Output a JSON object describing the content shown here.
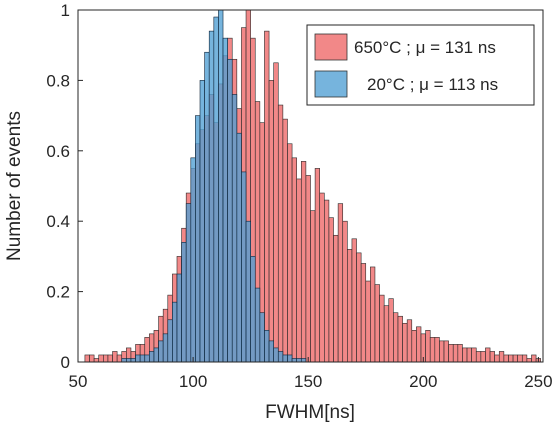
{
  "chart_data": {
    "type": "bar",
    "xlabel": "FWHM[ns]",
    "ylabel": "Number of events",
    "xlim": [
      50,
      252
    ],
    "ylim": [
      0,
      1
    ],
    "xticks": [
      "50",
      "100",
      "150",
      "200",
      "250"
    ],
    "yticks": [
      "0",
      "0.2",
      "0.4",
      "0.6",
      "0.8",
      "1"
    ],
    "grid": false,
    "legend_position": "top-right",
    "bin_width": 2,
    "series": [
      {
        "name": "650°C ; μ = 131 ns",
        "color": "#f07373",
        "x": [
          54,
          56,
          58,
          60,
          62,
          64,
          66,
          68,
          70,
          72,
          74,
          76,
          78,
          80,
          82,
          84,
          86,
          88,
          90,
          92,
          94,
          96,
          98,
          100,
          102,
          104,
          106,
          108,
          110,
          112,
          114,
          116,
          118,
          120,
          122,
          124,
          126,
          128,
          130,
          132,
          134,
          136,
          138,
          140,
          142,
          144,
          146,
          148,
          150,
          152,
          154,
          156,
          158,
          160,
          162,
          164,
          166,
          168,
          170,
          172,
          174,
          176,
          178,
          180,
          182,
          184,
          186,
          188,
          190,
          192,
          194,
          196,
          198,
          200,
          202,
          204,
          206,
          208,
          210,
          212,
          214,
          216,
          218,
          220,
          222,
          224,
          226,
          228,
          230,
          232,
          234,
          236,
          238,
          240,
          242,
          244,
          246,
          248,
          250
        ],
        "values": [
          0.02,
          0.02,
          0.01,
          0.02,
          0.02,
          0.02,
          0.03,
          0.02,
          0.03,
          0.04,
          0.03,
          0.05,
          0.05,
          0.07,
          0.08,
          0.09,
          0.13,
          0.15,
          0.19,
          0.25,
          0.3,
          0.38,
          0.48,
          0.55,
          0.62,
          0.66,
          0.7,
          0.76,
          0.68,
          0.79,
          0.87,
          0.92,
          0.86,
          0.72,
          0.95,
          1.0,
          0.92,
          0.74,
          0.68,
          0.94,
          0.8,
          0.85,
          0.73,
          0.69,
          0.62,
          0.58,
          0.52,
          0.57,
          0.53,
          0.43,
          0.55,
          0.48,
          0.46,
          0.41,
          0.36,
          0.45,
          0.4,
          0.32,
          0.35,
          0.31,
          0.28,
          0.23,
          0.27,
          0.22,
          0.19,
          0.16,
          0.18,
          0.14,
          0.13,
          0.11,
          0.12,
          0.09,
          0.1,
          0.08,
          0.09,
          0.07,
          0.07,
          0.06,
          0.06,
          0.05,
          0.05,
          0.05,
          0.04,
          0.04,
          0.04,
          0.03,
          0.03,
          0.04,
          0.03,
          0.02,
          0.03,
          0.02,
          0.02,
          0.02,
          0.02,
          0.02,
          0.01,
          0.02,
          0.01
        ]
      },
      {
        "name": "20°C ; μ = 113 ns",
        "color": "#4f9fd4",
        "x": [
          70,
          72,
          74,
          76,
          78,
          80,
          82,
          84,
          86,
          88,
          90,
          92,
          94,
          96,
          98,
          100,
          102,
          104,
          106,
          108,
          110,
          112,
          114,
          116,
          118,
          120,
          122,
          124,
          126,
          128,
          130,
          132,
          134,
          136,
          138,
          140,
          142,
          144,
          146,
          148
        ],
        "values": [
          0.01,
          0.01,
          0.01,
          0.02,
          0.02,
          0.02,
          0.03,
          0.04,
          0.06,
          0.08,
          0.12,
          0.17,
          0.25,
          0.34,
          0.45,
          0.58,
          0.7,
          0.8,
          0.88,
          0.94,
          0.98,
          1.0,
          0.92,
          0.86,
          0.76,
          0.65,
          0.54,
          0.4,
          0.3,
          0.21,
          0.14,
          0.09,
          0.06,
          0.04,
          0.03,
          0.02,
          0.02,
          0.01,
          0.01,
          0.01
        ]
      }
    ]
  }
}
